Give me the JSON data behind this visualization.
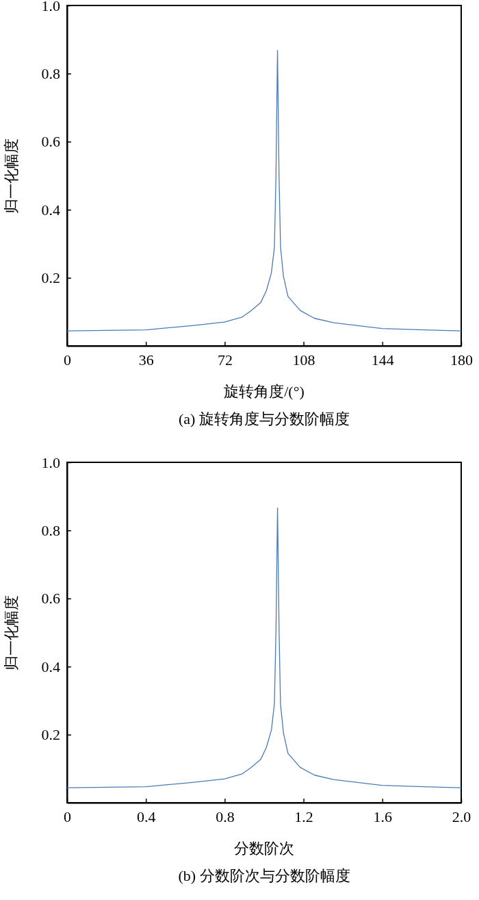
{
  "chart_data": [
    {
      "type": "line",
      "title": "(a) 旋转角度与分数阶幅度",
      "xlabel": "旋转角度/(°)",
      "ylabel": "归一化幅度",
      "x": [
        0,
        36,
        58,
        72,
        80,
        84,
        88.5,
        91,
        93.3,
        94.7,
        95.4,
        96.1,
        96.8,
        97.5,
        98.8,
        100.9,
        106.5,
        113,
        121.7,
        143.8,
        163,
        180
      ],
      "series": [
        {
          "color": "#4a7ab5",
          "values": [
            0.044,
            0.047,
            0.06,
            0.07,
            0.085,
            0.103,
            0.128,
            0.162,
            0.214,
            0.29,
            0.5,
            0.868,
            0.5,
            0.29,
            0.205,
            0.145,
            0.104,
            0.081,
            0.068,
            0.051,
            0.047,
            0.044
          ]
        }
      ],
      "xlim": [
        0,
        180
      ],
      "xticks": [
        0,
        36,
        72,
        108,
        144,
        180
      ],
      "ylim": [
        0,
        1
      ],
      "yticks": [
        0.2,
        0.4,
        0.6,
        0.8,
        {
          "value": 1,
          "label": "1.0"
        }
      ],
      "marker": "none",
      "line_style": "solid"
    },
    {
      "type": "line",
      "title": "(b) 分数阶次与分数阶幅度",
      "xlabel": "分数阶次",
      "ylabel": "归一化幅度",
      "x": [
        0,
        0.4,
        0.644,
        0.8,
        0.889,
        0.933,
        0.983,
        1.011,
        1.037,
        1.052,
        1.06,
        1.068,
        1.076,
        1.083,
        1.098,
        1.121,
        1.183,
        1.256,
        1.352,
        1.598,
        1.811,
        2
      ],
      "series": [
        {
          "color": "#4a7ab5",
          "values": [
            0.044,
            0.047,
            0.06,
            0.07,
            0.085,
            0.103,
            0.128,
            0.162,
            0.214,
            0.29,
            0.5,
            0.866,
            0.5,
            0.29,
            0.205,
            0.145,
            0.104,
            0.081,
            0.068,
            0.051,
            0.047,
            0.044
          ]
        }
      ],
      "xlim": [
        0,
        2
      ],
      "xticks": [
        0,
        0.4,
        0.8,
        1.2,
        1.6,
        {
          "value": 2,
          "label": "2.0"
        }
      ],
      "ylim": [
        0,
        1
      ],
      "yticks": [
        0.2,
        0.4,
        0.6,
        0.8,
        {
          "value": 1,
          "label": "1.0"
        }
      ],
      "marker": "none",
      "line_style": "solid"
    }
  ]
}
